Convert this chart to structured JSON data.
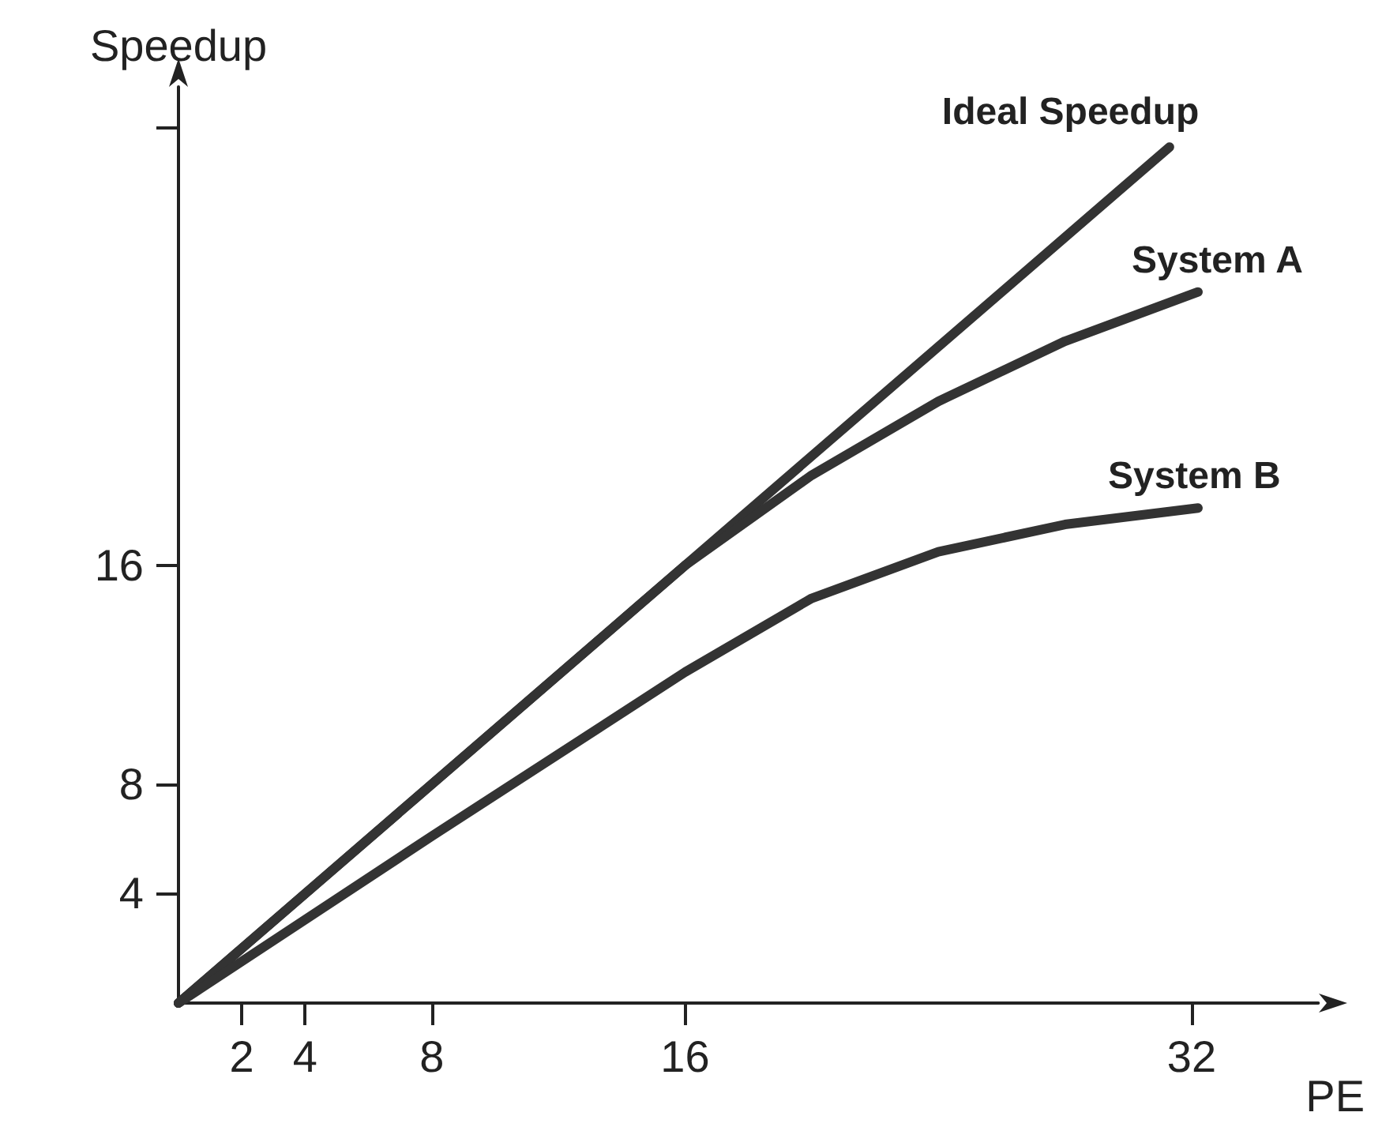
{
  "chart_data": {
    "type": "line",
    "xlabel": "PE",
    "ylabel": "Speedup",
    "xlim": [
      0,
      36
    ],
    "ylim": [
      0,
      33.5
    ],
    "xticks": [
      2,
      4,
      8,
      16,
      32
    ],
    "yticks": [
      4,
      8,
      16,
      {
        "value": 32,
        "label": null
      }
    ],
    "grid": false,
    "legend": false,
    "marker": "none",
    "line_style": "solid",
    "series": [
      {
        "name": "Ideal Speedup",
        "color": "#333333",
        "x": [
          0,
          31.3
        ],
        "values": [
          0,
          31.3
        ]
      },
      {
        "name": "System A",
        "color": "#333333",
        "x": [
          0,
          16,
          20,
          24,
          28,
          32.2
        ],
        "values": [
          0,
          16,
          19.3,
          22,
          24.2,
          26
        ]
      },
      {
        "name": "System B",
        "color": "#333333",
        "x": [
          0,
          8,
          16,
          20,
          24,
          28,
          32.2
        ],
        "values": [
          0,
          6.1,
          12.1,
          14.8,
          16.5,
          17.5,
          18.1
        ]
      }
    ]
  }
}
